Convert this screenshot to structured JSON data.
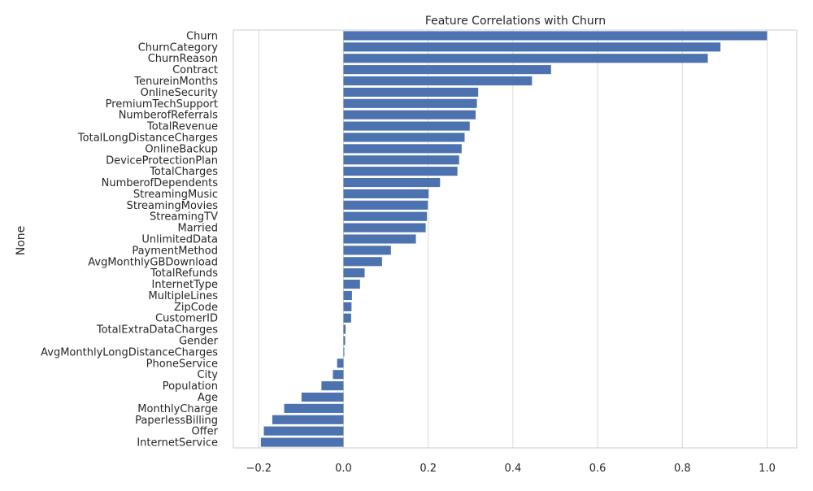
{
  "chart_data": {
    "type": "bar",
    "orientation": "horizontal",
    "title": "Feature Correlations with Churn",
    "xlabel": "",
    "ylabel": "None",
    "xlim": [
      -0.26,
      1.07
    ],
    "x_ticks": [
      -0.2,
      0.0,
      0.2,
      0.4,
      0.6,
      0.8,
      1.0
    ],
    "x_tick_labels": [
      "−0.2",
      "0.0",
      "0.2",
      "0.4",
      "0.6",
      "0.8",
      "1.0"
    ],
    "grid": "vertical",
    "bar_color": "#4c72b0",
    "grid_color": "#d9d9d9",
    "categories": [
      "Churn",
      "ChurnCategory",
      "ChurnReason",
      "Contract",
      "TenureinMonths",
      "OnlineSecurity",
      "PremiumTechSupport",
      "NumberofReferrals",
      "TotalRevenue",
      "TotalLongDistanceCharges",
      "OnlineBackup",
      "DeviceProtectionPlan",
      "TotalCharges",
      "NumberofDependents",
      "StreamingMusic",
      "StreamingMovies",
      "StreamingTV",
      "Married",
      "UnlimitedData",
      "PaymentMethod",
      "AvgMonthlyGBDownload",
      "TotalRefunds",
      "InternetType",
      "MultipleLines",
      "ZipCode",
      "CustomerID",
      "TotalExtraDataCharges",
      "Gender",
      "AvgMonthlyLongDistanceCharges",
      "PhoneService",
      "City",
      "Population",
      "Age",
      "MonthlyCharge",
      "PaperlessBilling",
      "Offer",
      "InternetService"
    ],
    "values": [
      1.0,
      0.89,
      0.86,
      0.49,
      0.445,
      0.318,
      0.315,
      0.312,
      0.298,
      0.286,
      0.279,
      0.273,
      0.269,
      0.228,
      0.201,
      0.199,
      0.197,
      0.194,
      0.171,
      0.112,
      0.091,
      0.05,
      0.039,
      0.02,
      0.019,
      0.018,
      0.005,
      0.004,
      0.002,
      -0.015,
      -0.025,
      -0.052,
      -0.099,
      -0.14,
      -0.168,
      -0.188,
      -0.195
    ]
  }
}
